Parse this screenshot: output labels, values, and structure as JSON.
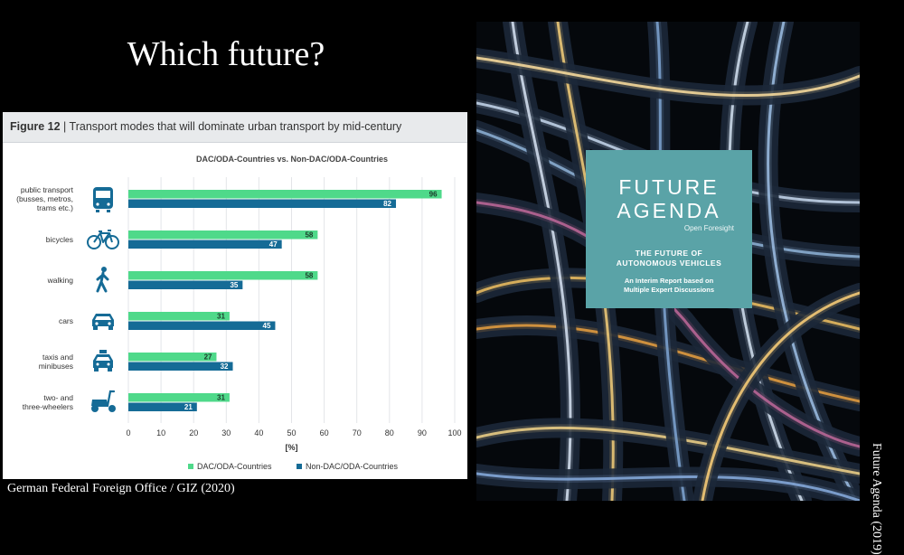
{
  "slide": {
    "title": "Which future?",
    "credit_left": "German Federal Foreign Office / GIZ (2020)",
    "credit_right": "Future Agenda (2019)"
  },
  "figure": {
    "label": "Figure 12",
    "separator": " | ",
    "caption": "Transport modes that will dominate urban transport by mid-century"
  },
  "chart_data": {
    "type": "bar",
    "orientation": "horizontal",
    "subtitle": "DAC/ODA-Countries vs. Non-DAC/ODA-Countries",
    "categories": [
      {
        "lines": [
          "public transport",
          "(busses, metros,",
          "trams etc.)"
        ],
        "icon": "bus-icon"
      },
      {
        "lines": [
          "bicycles"
        ],
        "icon": "bicycle-icon"
      },
      {
        "lines": [
          "walking"
        ],
        "icon": "pedestrian-icon"
      },
      {
        "lines": [
          "cars"
        ],
        "icon": "car-icon"
      },
      {
        "lines": [
          "taxis and",
          "minibuses"
        ],
        "icon": "taxi-icon"
      },
      {
        "lines": [
          "two- and",
          "three-wheelers"
        ],
        "icon": "scooter-icon"
      }
    ],
    "series": [
      {
        "name": "DAC/ODA-Countries",
        "color": "#4fd98a",
        "values": [
          96,
          58,
          58,
          31,
          27,
          31
        ]
      },
      {
        "name": "Non-DAC/ODA-Countries",
        "color": "#156b96",
        "values": [
          82,
          47,
          35,
          45,
          32,
          21
        ]
      }
    ],
    "xlim": [
      0,
      100
    ],
    "xticks": [
      0,
      10,
      20,
      30,
      40,
      50,
      60,
      70,
      80,
      90,
      100
    ],
    "xlabel": "[%]",
    "grid": true,
    "legend": "bottom"
  },
  "cover": {
    "brand_line1": "FUTURE",
    "brand_line2": "AGENDA",
    "tagline": "Open Foresight",
    "report_title_line1": "THE FUTURE OF",
    "report_title_line2": "AUTONOMOUS VEHICLES",
    "report_sub_line1": "An Interim Report based on",
    "report_sub_line2": "Multiple Expert Discussions"
  }
}
